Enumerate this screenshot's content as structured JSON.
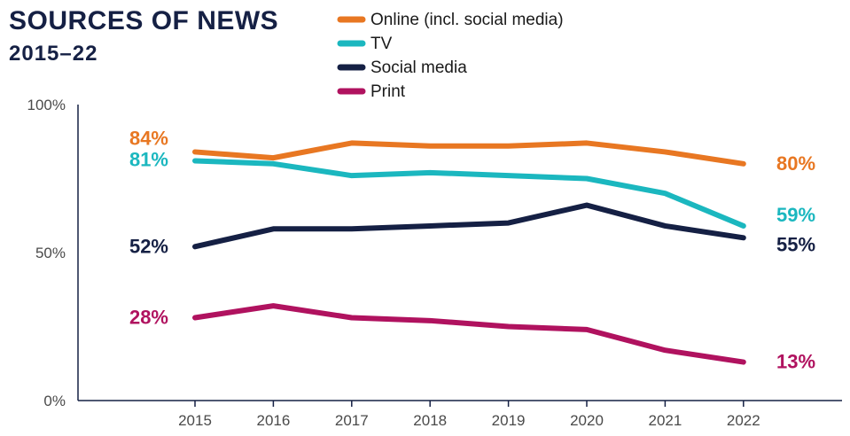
{
  "header": {
    "title": "SOURCES OF NEWS",
    "subtitle": "2015–22"
  },
  "chart_data": {
    "type": "line",
    "title": "SOURCES OF NEWS",
    "subtitle": "2015–22",
    "x": [
      "2015",
      "2016",
      "2017",
      "2018",
      "2019",
      "2020",
      "2021",
      "2022"
    ],
    "y_ticks": [
      "0%",
      "50%",
      "100%"
    ],
    "ylim": [
      0,
      100
    ],
    "grid": false,
    "legend_position": "top",
    "series": [
      {
        "name": "Online (incl. social media)",
        "color": "#E87722",
        "values": [
          84,
          82,
          87,
          86,
          86,
          87,
          84,
          80
        ],
        "start_label": "84%",
        "end_label": "80%"
      },
      {
        "name": "TV",
        "color": "#1BB7BF",
        "values": [
          81,
          80,
          76,
          77,
          76,
          75,
          70,
          59
        ],
        "start_label": "81%",
        "end_label": "59%"
      },
      {
        "name": "Social media",
        "color": "#152044",
        "values": [
          52,
          58,
          58,
          59,
          60,
          66,
          59,
          55
        ],
        "start_label": "52%",
        "end_label": "55%"
      },
      {
        "name": "Print",
        "color": "#B0125F",
        "values": [
          28,
          32,
          28,
          27,
          25,
          24,
          17,
          13
        ],
        "start_label": "28%",
        "end_label": "13%"
      }
    ]
  }
}
